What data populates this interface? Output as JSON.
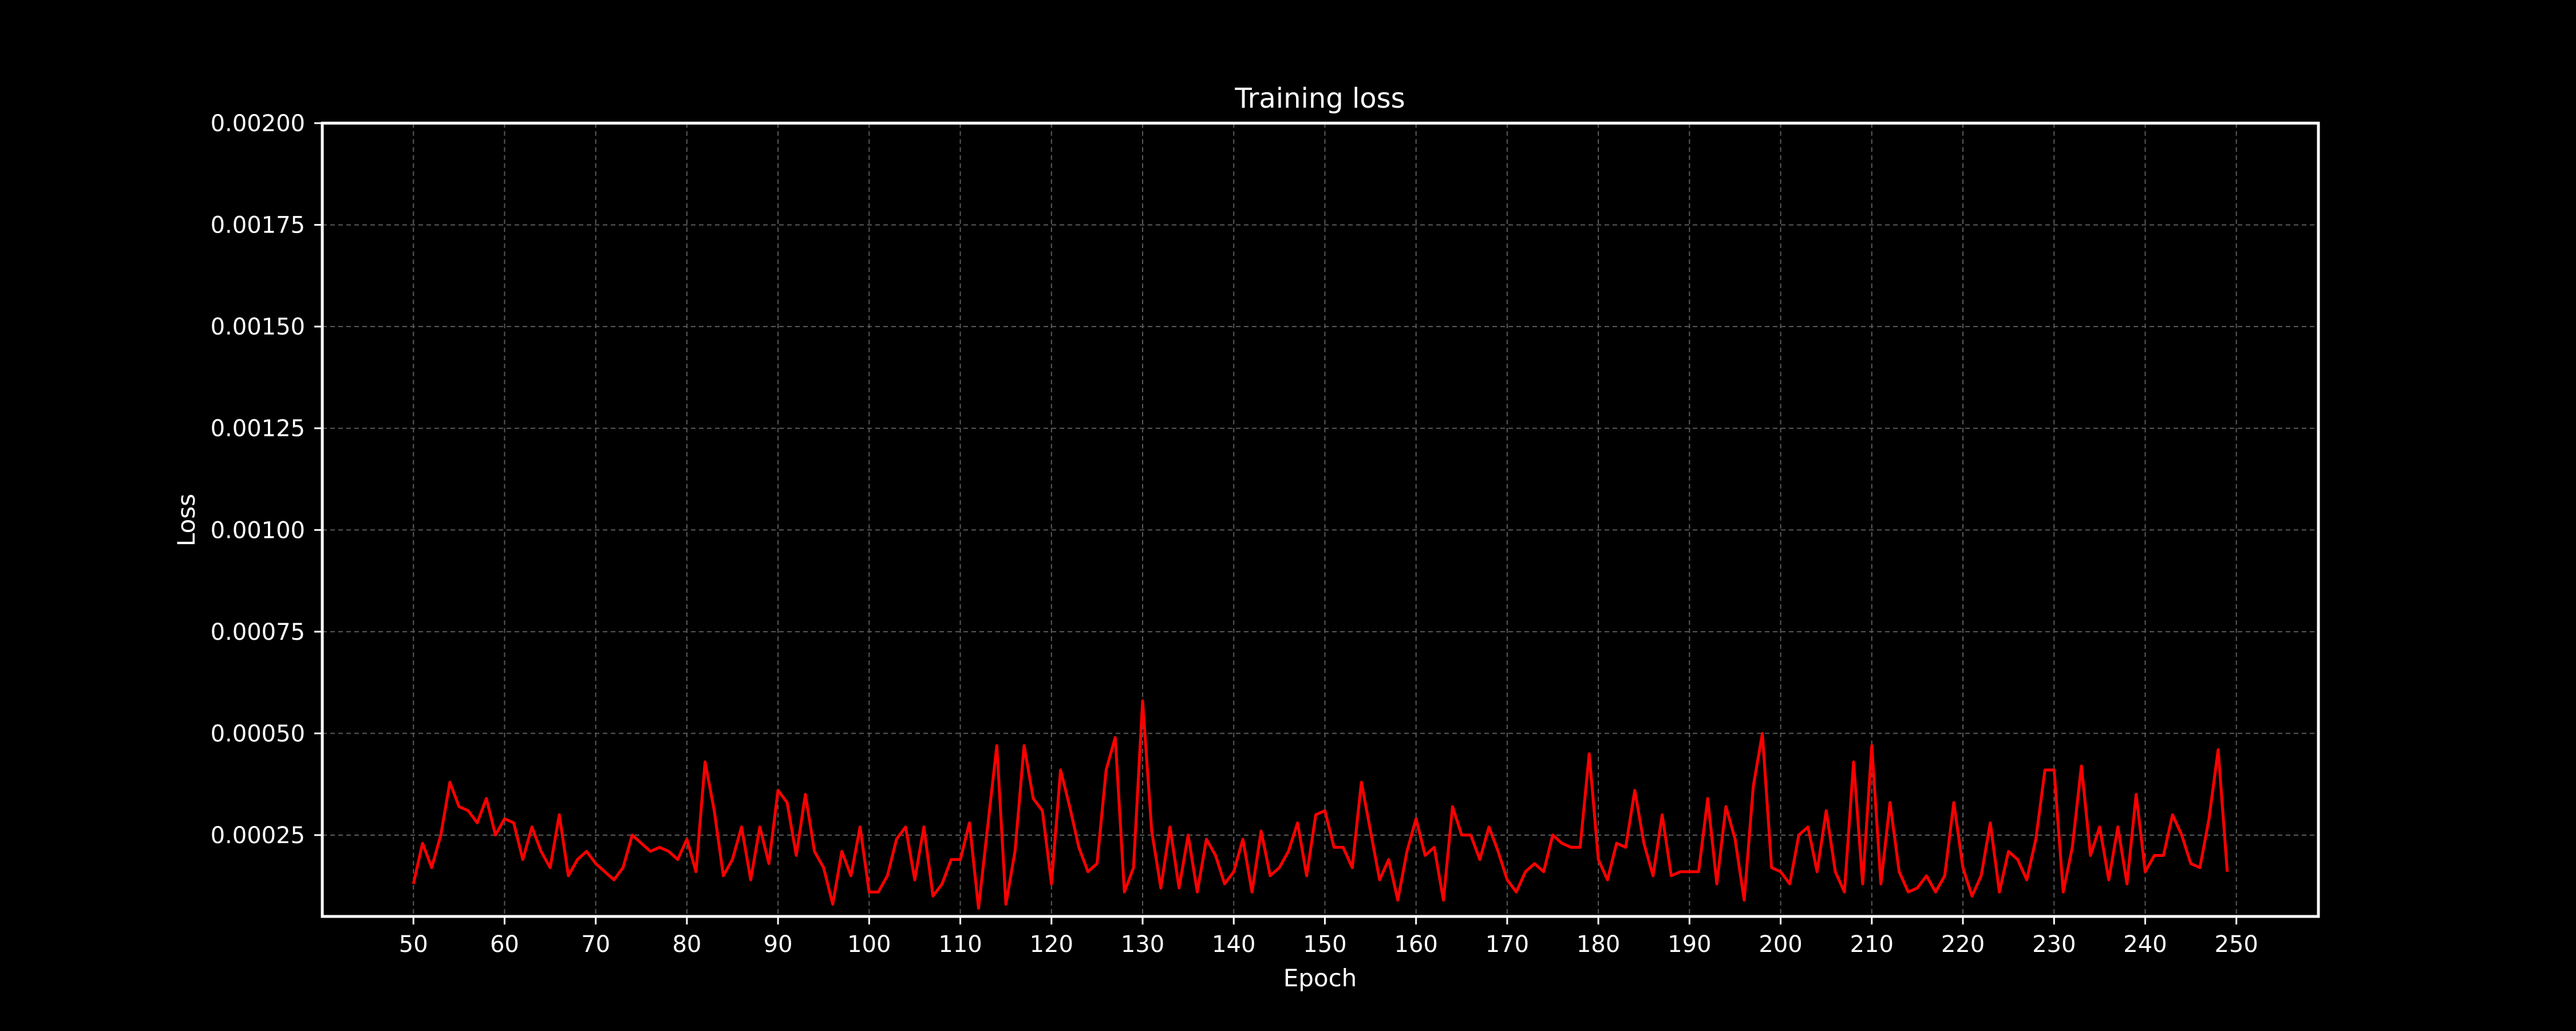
{
  "chart_data": {
    "type": "line",
    "title": "Training loss",
    "xlabel": "Epoch",
    "ylabel": "Loss",
    "xlim": [
      40,
      259
    ],
    "ylim": [
      5e-05,
      0.002
    ],
    "xticks": [
      50,
      60,
      70,
      80,
      90,
      100,
      110,
      120,
      130,
      140,
      150,
      160,
      170,
      180,
      190,
      200,
      210,
      220,
      230,
      240,
      250
    ],
    "xtick_labels": [
      "50",
      "60",
      "70",
      "80",
      "90",
      "100",
      "110",
      "120",
      "130",
      "140",
      "150",
      "160",
      "170",
      "180",
      "190",
      "200",
      "210",
      "220",
      "230",
      "240",
      "250"
    ],
    "yticks": [
      0.00025,
      0.0005,
      0.00075,
      0.001,
      0.00125,
      0.0015,
      0.00175,
      0.002
    ],
    "ytick_labels": [
      "0.00025",
      "0.00050",
      "0.00075",
      "0.00100",
      "0.00125",
      "0.00150",
      "0.00175",
      "0.00200"
    ],
    "grid": true,
    "colors": {
      "background": "#000000",
      "line": "#ff0000",
      "grid": "#5a5a5a",
      "text": "#ffffff"
    },
    "series": [
      {
        "x": [
          50,
          51,
          52,
          53,
          54,
          55,
          56,
          57,
          58,
          59,
          60,
          61,
          62,
          63,
          64,
          65,
          66,
          67,
          68,
          69,
          70,
          71,
          72,
          73,
          74,
          75,
          76,
          77,
          78,
          79,
          80,
          81,
          82,
          83,
          84,
          85,
          86,
          87,
          88,
          89,
          90,
          91,
          92,
          93,
          94,
          95,
          96,
          97,
          98,
          99,
          100,
          101,
          102,
          103,
          104,
          105,
          106,
          107,
          108,
          109,
          110,
          111,
          112,
          113,
          114,
          115,
          116,
          117,
          118,
          119,
          120,
          121,
          122,
          123,
          124,
          125,
          126,
          127,
          128,
          129,
          130,
          131,
          132,
          133,
          134,
          135,
          136,
          137,
          138,
          139,
          140,
          141,
          142,
          143,
          144,
          145,
          146,
          147,
          148,
          149,
          150,
          151,
          152,
          153,
          154,
          155,
          156,
          157,
          158,
          159,
          160,
          161,
          162,
          163,
          164,
          165,
          166,
          167,
          168,
          169,
          170,
          171,
          172,
          173,
          174,
          175,
          176,
          177,
          178,
          179,
          180,
          181,
          182,
          183,
          184,
          185,
          186,
          187,
          188,
          189,
          190,
          191,
          192,
          193,
          194,
          195,
          196,
          197,
          198,
          199,
          200,
          201,
          202,
          203,
          204,
          205,
          206,
          207,
          208,
          209,
          210,
          211,
          212,
          213,
          214,
          215,
          216,
          217,
          218,
          219,
          220,
          221,
          222,
          223,
          224,
          225,
          226,
          227,
          228,
          229,
          230,
          231,
          232,
          233,
          234,
          235,
          236,
          237,
          238,
          239,
          240,
          241,
          242,
          243,
          244,
          245,
          246,
          247,
          248,
          249
        ],
        "y": [
          0.00013,
          0.00023,
          0.00017,
          0.00025,
          0.00038,
          0.00032,
          0.00031,
          0.00028,
          0.00034,
          0.00025,
          0.00029,
          0.00028,
          0.00019,
          0.00027,
          0.00021,
          0.00017,
          0.0003,
          0.00015,
          0.00019,
          0.00021,
          0.00018,
          0.00016,
          0.00014,
          0.00017,
          0.00025,
          0.00023,
          0.00021,
          0.00022,
          0.00021,
          0.00019,
          0.00024,
          0.00016,
          0.00043,
          0.00031,
          0.00015,
          0.00019,
          0.00027,
          0.00014,
          0.00027,
          0.00018,
          0.00036,
          0.00033,
          0.0002,
          0.00035,
          0.00021,
          0.00017,
          8e-05,
          0.00021,
          0.00015,
          0.00027,
          0.00011,
          0.00011,
          0.00015,
          0.00024,
          0.00027,
          0.00014,
          0.00027,
          0.0001,
          0.00013,
          0.00019,
          0.00019,
          0.00028,
          7e-05,
          0.00027,
          0.00047,
          8e-05,
          0.00021,
          0.00047,
          0.00034,
          0.00031,
          0.00013,
          0.00041,
          0.00032,
          0.00022,
          0.00016,
          0.00018,
          0.00041,
          0.00049,
          0.00011,
          0.00017,
          0.00058,
          0.00026,
          0.00012,
          0.00027,
          0.00012,
          0.00025,
          0.00011,
          0.00024,
          0.0002,
          0.00013,
          0.00016,
          0.00024,
          0.00011,
          0.00026,
          0.00015,
          0.00017,
          0.00021,
          0.00028,
          0.00015,
          0.0003,
          0.00031,
          0.00022,
          0.00022,
          0.00017,
          0.00038,
          0.00026,
          0.00014,
          0.00019,
          9e-05,
          0.00021,
          0.00029,
          0.0002,
          0.00022,
          9e-05,
          0.00032,
          0.00025,
          0.00025,
          0.00019,
          0.00027,
          0.00021,
          0.00014,
          0.00011,
          0.00016,
          0.00018,
          0.00016,
          0.00025,
          0.00023,
          0.00022,
          0.00022,
          0.00045,
          0.00019,
          0.00014,
          0.00023,
          0.00022,
          0.00036,
          0.00023,
          0.00015,
          0.0003,
          0.00015,
          0.00016,
          0.00016,
          0.00016,
          0.00034,
          0.00013,
          0.00032,
          0.00024,
          9e-05,
          0.00037,
          0.0005,
          0.00017,
          0.00016,
          0.00013,
          0.00025,
          0.00027,
          0.00016,
          0.00031,
          0.00016,
          0.00011,
          0.00043,
          0.00013,
          0.00047,
          0.00013,
          0.00033,
          0.00016,
          0.00011,
          0.00012,
          0.00015,
          0.00011,
          0.00015,
          0.00033,
          0.00017,
          0.0001,
          0.00015,
          0.00028,
          0.00011,
          0.00021,
          0.00019,
          0.00014,
          0.00024,
          0.00041,
          0.00041,
          0.00011,
          0.00022,
          0.00042,
          0.0002,
          0.00027,
          0.00014,
          0.00027,
          0.00013,
          0.00035,
          0.00016,
          0.0002,
          0.0002,
          0.0003,
          0.00025,
          0.00018,
          0.00017,
          0.00029,
          0.00046,
          0.00016
        ]
      }
    ]
  }
}
